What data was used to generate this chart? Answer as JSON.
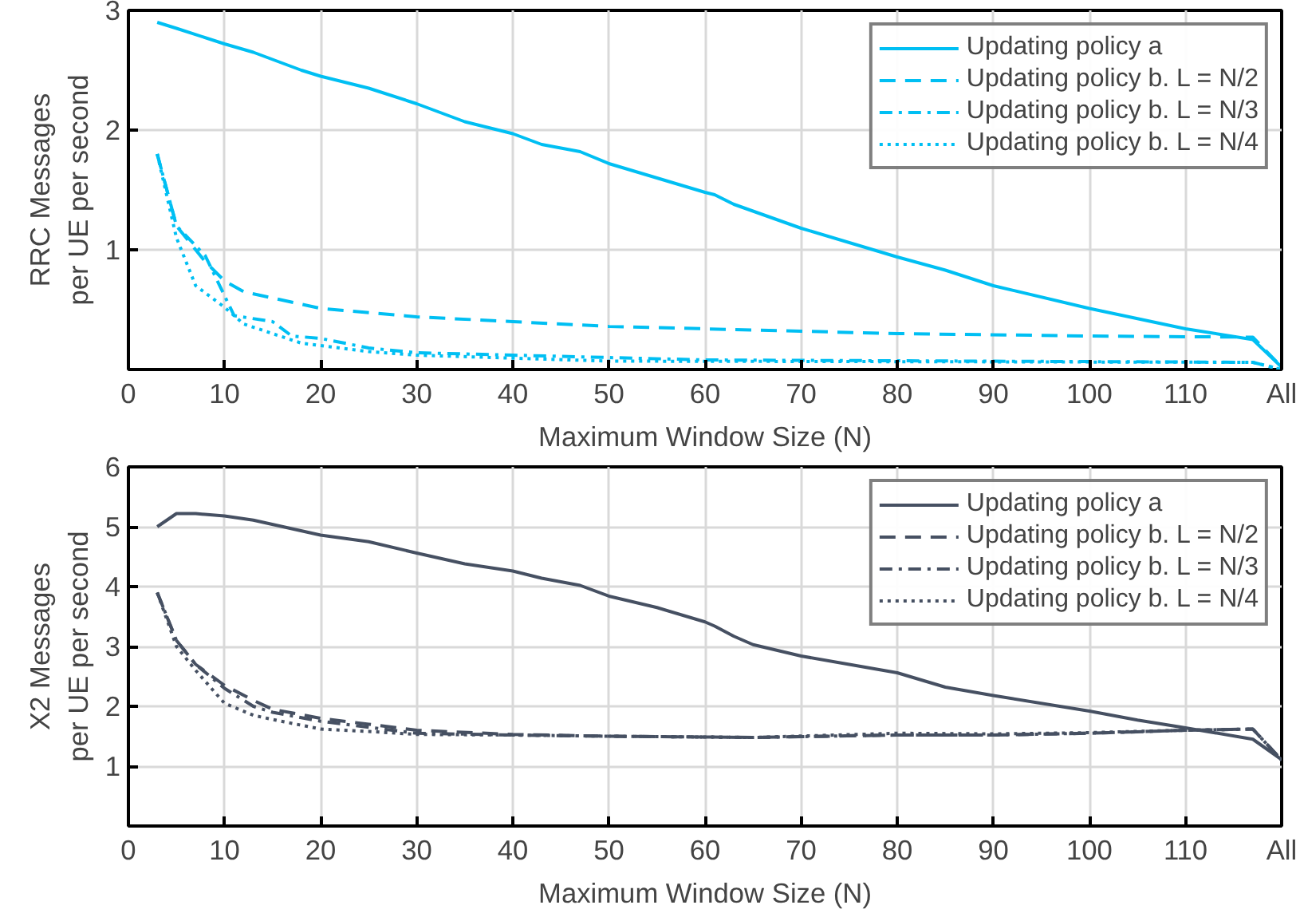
{
  "chart_data": [
    {
      "type": "line",
      "xlabel": "Maximum Window Size (N)",
      "ylabel": "RRC Messages\nper UE per second",
      "xlim": [
        0,
        120
      ],
      "xticks": [
        0,
        10,
        20,
        30,
        40,
        50,
        60,
        70,
        80,
        90,
        100,
        110,
        {
          "value": 120,
          "label": "All"
        }
      ],
      "ylim": [
        0,
        3
      ],
      "yticks": [
        1,
        2,
        3
      ],
      "grid": true,
      "legend": "top right",
      "series": [
        {
          "name": "Updating policy a",
          "color": "#00bff3",
          "line_style": "solid",
          "x": [
            3,
            5,
            10,
            13,
            18,
            20,
            25,
            30,
            35,
            40,
            43,
            47,
            50,
            55,
            60,
            61,
            63,
            70,
            80,
            85,
            90,
            100,
            110,
            117,
            120
          ],
          "values": [
            2.9,
            2.85,
            2.72,
            2.65,
            2.5,
            2.45,
            2.35,
            2.22,
            2.07,
            1.97,
            1.88,
            1.82,
            1.72,
            1.6,
            1.48,
            1.46,
            1.38,
            1.18,
            0.94,
            0.83,
            0.7,
            0.51,
            0.34,
            0.25,
            0.02
          ]
        },
        {
          "name": "Updating policy b. L = N/2",
          "color": "#00bff3",
          "line_style": "dashed",
          "x": [
            3,
            5,
            8,
            10,
            12,
            20,
            30,
            40,
            50,
            60,
            70,
            80,
            100,
            117,
            120
          ],
          "values": [
            1.8,
            1.2,
            0.9,
            0.74,
            0.65,
            0.51,
            0.44,
            0.4,
            0.36,
            0.34,
            0.32,
            0.3,
            0.28,
            0.27,
            0.02
          ]
        },
        {
          "name": "Updating policy b. L = N/3",
          "color": "#00bff3",
          "line_style": "dashdot",
          "x": [
            3,
            5,
            8,
            11,
            15,
            17,
            20,
            25,
            30,
            40,
            60,
            117,
            120
          ],
          "values": [
            1.8,
            1.2,
            0.95,
            0.45,
            0.4,
            0.28,
            0.26,
            0.18,
            0.14,
            0.12,
            0.08,
            0.06,
            0.0
          ]
        },
        {
          "name": "Updating policy b. L = N/4",
          "color": "#00bff3",
          "line_style": "dotted",
          "x": [
            3,
            5,
            7,
            10,
            12,
            18,
            25,
            30,
            50,
            117,
            120
          ],
          "values": [
            1.8,
            1.1,
            0.7,
            0.52,
            0.38,
            0.22,
            0.15,
            0.12,
            0.07,
            0.06,
            0.0
          ]
        }
      ]
    },
    {
      "type": "line",
      "xlabel": "Maximum Window Size (N)",
      "ylabel": "X2 Messages\nper UE per second",
      "xlim": [
        0,
        120
      ],
      "xticks": [
        0,
        10,
        20,
        30,
        40,
        50,
        60,
        70,
        80,
        90,
        100,
        110,
        {
          "value": 120,
          "label": "All"
        }
      ],
      "ylim": [
        0,
        6
      ],
      "yticks": [
        1,
        2,
        3,
        4,
        5,
        6
      ],
      "grid": true,
      "legend": "top right",
      "series": [
        {
          "name": "Updating policy a",
          "color": "#465062",
          "line_style": "solid",
          "x": [
            3,
            5,
            7,
            10,
            13,
            20,
            25,
            30,
            35,
            40,
            43,
            47,
            50,
            55,
            60,
            61,
            63,
            65,
            70,
            75,
            80,
            85,
            90,
            100,
            105,
            110,
            117,
            120
          ],
          "values": [
            5.0,
            5.22,
            5.22,
            5.18,
            5.11,
            4.86,
            4.75,
            4.56,
            4.38,
            4.26,
            4.14,
            4.02,
            3.84,
            3.65,
            3.41,
            3.34,
            3.17,
            3.03,
            2.84,
            2.7,
            2.56,
            2.32,
            2.18,
            1.92,
            1.77,
            1.64,
            1.45,
            1.11
          ]
        },
        {
          "name": "Updating policy b. L = N/2",
          "color": "#465062",
          "line_style": "dashed",
          "x": [
            3,
            5,
            7,
            10,
            13,
            15,
            20,
            25,
            30,
            40,
            50,
            65,
            80,
            90,
            100,
            110,
            117,
            120
          ],
          "values": [
            3.9,
            3.1,
            2.7,
            2.35,
            2.1,
            1.95,
            1.8,
            1.7,
            1.6,
            1.53,
            1.5,
            1.48,
            1.52,
            1.52,
            1.55,
            1.6,
            1.62,
            1.1
          ]
        },
        {
          "name": "Updating policy b. L = N/3",
          "color": "#465062",
          "line_style": "dashdot",
          "x": [
            3,
            5,
            7,
            10,
            13,
            15,
            20,
            25,
            30,
            40,
            50,
            65,
            80,
            90,
            100,
            110,
            117,
            120
          ],
          "values": [
            3.9,
            3.1,
            2.7,
            2.3,
            2.0,
            1.9,
            1.75,
            1.65,
            1.55,
            1.52,
            1.5,
            1.48,
            1.52,
            1.52,
            1.55,
            1.6,
            1.62,
            1.1
          ]
        },
        {
          "name": "Updating policy b. L = N/4",
          "color": "#465062",
          "line_style": "dotted",
          "x": [
            3,
            5,
            7,
            10,
            13,
            15,
            20,
            25,
            30,
            40,
            50,
            65,
            80,
            90,
            100,
            110,
            117,
            120
          ],
          "values": [
            3.9,
            3.0,
            2.6,
            2.05,
            1.85,
            1.78,
            1.62,
            1.58,
            1.53,
            1.52,
            1.5,
            1.48,
            1.55,
            1.54,
            1.56,
            1.6,
            1.62,
            1.1
          ]
        }
      ]
    }
  ]
}
